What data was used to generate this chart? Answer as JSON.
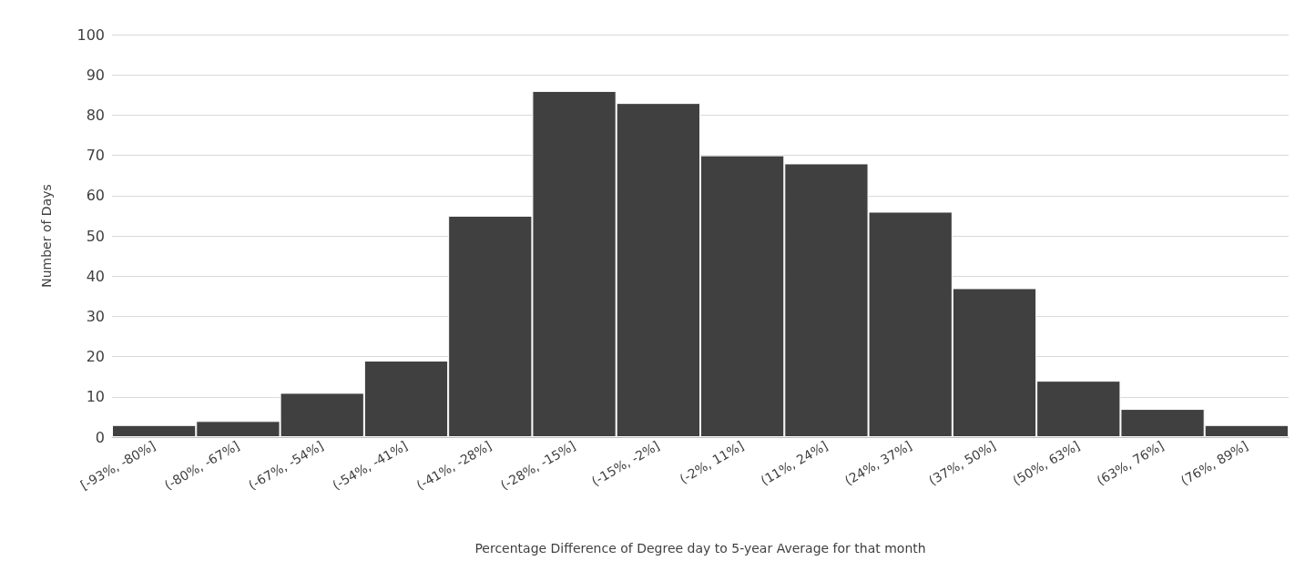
{
  "chart_data": {
    "type": "bar",
    "xlabel": "Percentage Difference of Degree day to 5-year Average for that month",
    "ylabel": "Number of Days",
    "categories": [
      "[-93%, -80%]",
      "(-80%, -67%]",
      "(-67%, -54%]",
      "(-54%, -41%]",
      "(-41%, -28%]",
      "(-28%, -15%]",
      "(-15%, -2%]",
      "(-2%, 11%]",
      "(11%, 24%]",
      "(24%, 37%]",
      "(37%, 50%]",
      "(50%, 63%]",
      "(63%, 76%]",
      "(76%, 89%]"
    ],
    "values": [
      3,
      4,
      11,
      19,
      55,
      86,
      83,
      70,
      68,
      56,
      37,
      14,
      7,
      3
    ],
    "color": "#404040",
    "ylim": [
      0,
      100
    ],
    "yticks": [
      0,
      10,
      20,
      30,
      40,
      50,
      60,
      70,
      80,
      90,
      100
    ],
    "grid": "y"
  }
}
